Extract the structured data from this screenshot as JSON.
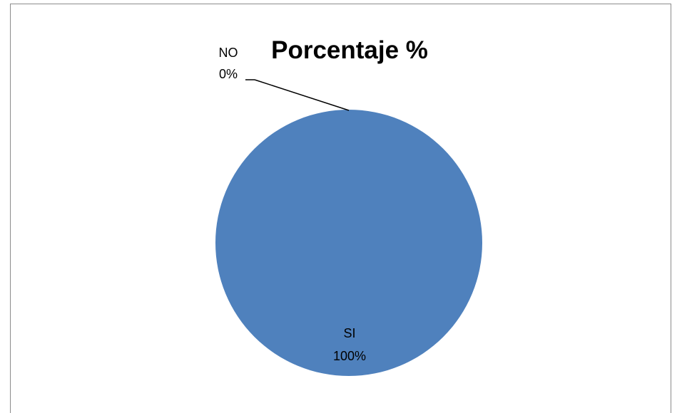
{
  "chart_data": {
    "type": "pie",
    "title": "Porcentaje %",
    "categories": [
      "SI",
      "NO"
    ],
    "values": [
      100,
      0
    ],
    "data_labels": [
      {
        "category": "SI",
        "value": "100%"
      },
      {
        "category": "NO",
        "value": "0%"
      }
    ],
    "colors": [
      "#4f81bd",
      "#c0504d"
    ],
    "legend": "none"
  }
}
